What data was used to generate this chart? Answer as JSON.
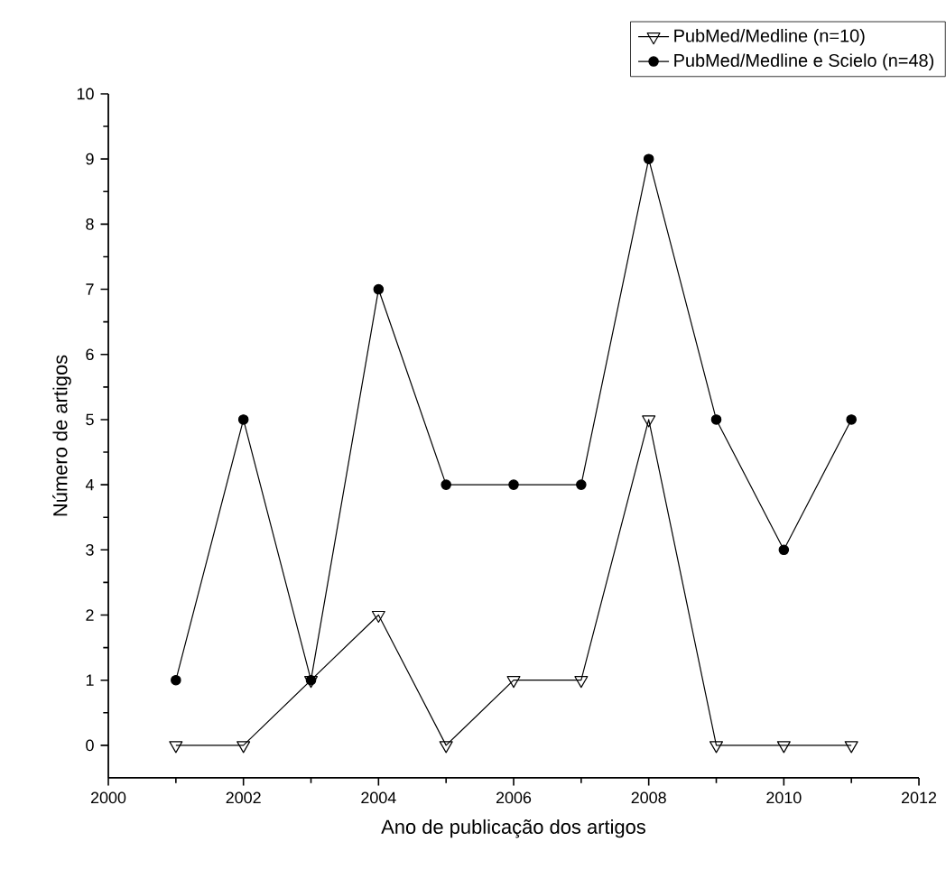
{
  "chart_data": {
    "type": "line",
    "xlabel": "Ano de publicação dos artigos",
    "ylabel": "Número de artigos",
    "x": [
      2001,
      2002,
      2003,
      2004,
      2005,
      2006,
      2007,
      2008,
      2009,
      2010,
      2011
    ],
    "series": [
      {
        "name": "PubMed/Medline (n=10)",
        "color": "#000000",
        "marker": "triangle",
        "values": [
          0,
          0,
          1,
          2,
          0,
          1,
          1,
          5,
          0,
          0,
          0
        ]
      },
      {
        "name": "PubMed/Medline e Scielo (n=48)",
        "color": "#000000",
        "marker": "circle",
        "values": [
          1,
          5,
          1,
          7,
          4,
          4,
          4,
          9,
          5,
          3,
          5
        ]
      }
    ],
    "xlim": [
      2000,
      2012
    ],
    "xticks": [
      2000,
      2002,
      2004,
      2006,
      2008,
      2010,
      2012
    ],
    "ylim": [
      -0.5,
      10
    ],
    "yticks": [
      0,
      1,
      2,
      3,
      4,
      5,
      6,
      7,
      8,
      9,
      10
    ],
    "legend": "top right",
    "grid": false,
    "line_style": "solid"
  }
}
